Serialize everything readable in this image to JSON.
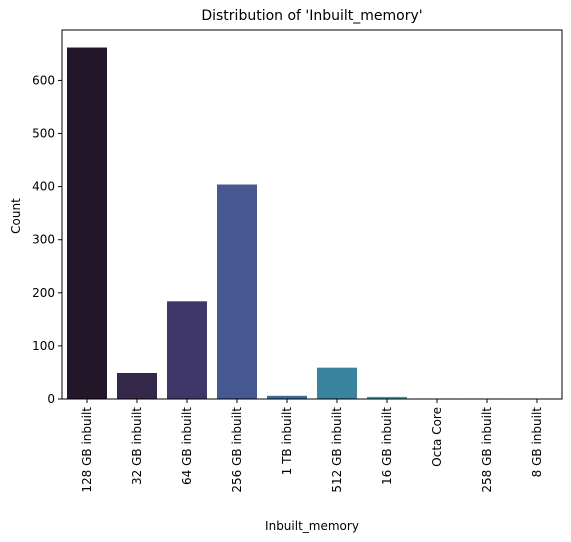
{
  "chart_data": {
    "type": "bar",
    "title": "Distribution of 'Inbuilt_memory'",
    "xlabel": "Inbuilt_memory",
    "ylabel": "Count",
    "categories": [
      "128 GB inbuilt",
      "32 GB inbuilt",
      "64 GB inbuilt",
      "256 GB inbuilt",
      "1 TB inbuilt",
      "512 GB inbuilt",
      "16 GB inbuilt",
      "Octa Core",
      "258 GB inbuilt",
      "8 GB inbuilt"
    ],
    "values": [
      662,
      49,
      184,
      404,
      6,
      59,
      4,
      1,
      1,
      1
    ],
    "ylim": [
      0,
      695
    ],
    "yticks": [
      0,
      100,
      200,
      300,
      400,
      500,
      600
    ],
    "colors": [
      "#221728",
      "#34284a",
      "#3f3769",
      "#45588f",
      "#3a6c96",
      "#3a84a0",
      "#3c9aa8",
      "#3cb0ab",
      "#45c2a9",
      "#57d0a4"
    ],
    "grid": false,
    "legend": "none"
  }
}
